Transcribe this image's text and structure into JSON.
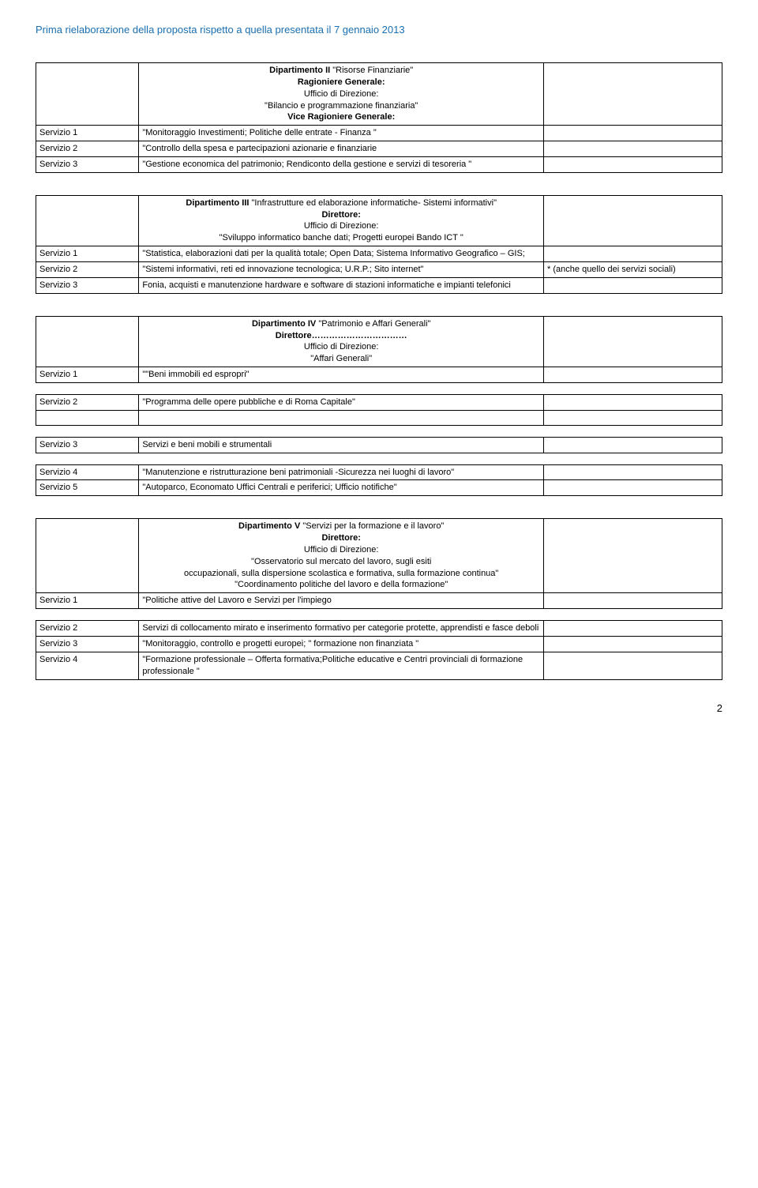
{
  "header": "Prima rielaborazione della proposta rispetto a quella presentata il 7 gennaio 2013",
  "pageNumber": "2",
  "dept2": {
    "title": "Dipartimento II",
    "name": "\"Risorse Finanziarie\"",
    "subtitle": "Ragioniere Generale:",
    "office": "Ufficio di Direzione:",
    "detail1": "\"Bilancio e programmazione finanziaria\"",
    "subtitle2": "Vice Ragioniere Generale:",
    "rows": [
      {
        "label": "Servizio 1",
        "text": "\"Monitoraggio Investimenti; Politiche delle entrate - Finanza \""
      },
      {
        "label": "Servizio 2",
        "text": "\"Controllo della spesa e partecipazioni azionarie e finanziarie"
      },
      {
        "label": "Servizio 3",
        "text": "\"Gestione economica del patrimonio; Rendiconto della gestione e servizi di tesoreria \""
      }
    ]
  },
  "dept3": {
    "title": "Dipartimento III",
    "name": "\"Infrastrutture ed elaborazione informatiche- Sistemi informativi\"",
    "subtitle": "Direttore:",
    "office": "Ufficio di Direzione:",
    "detail1": "\"Sviluppo informatico banche dati; Progetti europei Bando ICT \"",
    "rows": [
      {
        "label": "Servizio 1",
        "text": "\"Statistica, elaborazioni dati per la qualità totale; Open Data; Sistema Informativo Geografico – GIS;",
        "note": ""
      },
      {
        "label": "Servizio 2",
        "text": "\"Sistemi informativi, reti ed innovazione tecnologica; U.R.P.; Sito internet\"",
        "note": "* (anche quello dei servizi sociali)"
      },
      {
        "label": "Servizio 3",
        "text": "Fonia, acquisti e manutenzione hardware e software di stazioni informatiche e impianti telefonici",
        "note": ""
      }
    ]
  },
  "dept4": {
    "title": "Dipartimento IV",
    "name": "\"Patrimonio e Affari Generali\"",
    "subtitle": "Direttore……………………………",
    "office": "Ufficio di Direzione:",
    "detail1": "\"Affari Generali\"",
    "rows": [
      {
        "label": "Servizio 1",
        "text": "\"\"Beni immobili ed espropri\""
      }
    ],
    "rows2": [
      {
        "label": "Servizio 2",
        "text": "\"Programma delle opere pubbliche e di Roma Capitale\""
      }
    ],
    "rows3": [
      {
        "label": "Servizio 3",
        "text": "Servizi e beni mobili e strumentali"
      }
    ],
    "rows4": [
      {
        "label": "Servizio 4",
        "text": "\"Manutenzione e ristrutturazione beni patrimoniali -Sicurezza nei luoghi di lavoro\""
      },
      {
        "label": "Servizio 5",
        "text": "\"Autoparco, Economato Uffici Centrali e periferici; Ufficio notifiche\""
      }
    ]
  },
  "dept5": {
    "title": "Dipartimento V",
    "name": "\"Servizi per la formazione e il lavoro\"",
    "subtitle": "Direttore:",
    "office": "Ufficio di Direzione:",
    "detail1": "\"Osservatorio sul mercato del lavoro, sugli esiti",
    "detail2": "occupazionali, sulla dispersione scolastica e formativa, sulla formazione continua\"",
    "detail3": "\"Coordinamento politiche del lavoro e della formazione\"",
    "rows": [
      {
        "label": "Servizio 1",
        "text": "\"Politiche attive del Lavoro e Servizi per l'impiego"
      }
    ],
    "rows2": [
      {
        "label": "Servizio 2",
        "text": "Servizi di collocamento mirato e inserimento formativo per categorie protette, apprendisti e fasce deboli"
      },
      {
        "label": "Servizio 3",
        "text": "\"Monitoraggio, controllo e progetti europei; \" formazione non finanziata \""
      },
      {
        "label": "Servizio 4",
        "text": "\"Formazione professionale – Offerta formativa;Politiche educative e Centri provinciali di formazione professionale \""
      }
    ]
  }
}
